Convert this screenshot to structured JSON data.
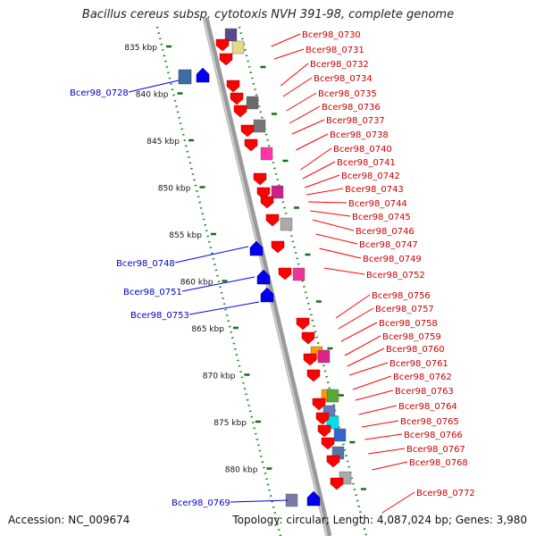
{
  "title": "Bacillus cereus subsp. cytotoxis NVH 391-98, complete genome",
  "accession": "Accession: NC_009674",
  "topology": "Topology: circular; Length: 4,087,024 bp; Genes: 3,980",
  "axis": {
    "unit": "kbp",
    "ticks": [
      "835 kbp",
      "840 kbp",
      "845 kbp",
      "850 kbp",
      "855 kbp",
      "860 kbp",
      "865 kbp",
      "870 kbp",
      "875 kbp",
      "880 kbp"
    ]
  },
  "colors": {
    "forward_gene": "#ff0000",
    "reverse_gene": "#0000ee",
    "forward_label": "#cc0000",
    "reverse_label": "#0000cc",
    "backbone": "#888888",
    "track_dots": "#228b22"
  },
  "forward_labels": [
    "Bcer98_0730",
    "Bcer98_0731",
    "Bcer98_0732",
    "Bcer98_0734",
    "Bcer98_0735",
    "Bcer98_0736",
    "Bcer98_0737",
    "Bcer98_0738",
    "Bcer98_0740",
    "Bcer98_0741",
    "Bcer98_0742",
    "Bcer98_0743",
    "Bcer98_0744",
    "Bcer98_0745",
    "Bcer98_0746",
    "Bcer98_0747",
    "Bcer98_0749",
    "Bcer98_0752",
    "Bcer98_0756",
    "Bcer98_0757",
    "Bcer98_0758",
    "Bcer98_0759",
    "Bcer98_0760",
    "Bcer98_0761",
    "Bcer98_0762",
    "Bcer98_0763",
    "Bcer98_0764",
    "Bcer98_0765",
    "Bcer98_0766",
    "Bcer98_0767",
    "Bcer98_0768",
    "Bcer98_0772"
  ],
  "reverse_labels": [
    "Bcer98_0728",
    "Bcer98_0748",
    "Bcer98_0751",
    "Bcer98_0753",
    "Bcer98_0769"
  ]
}
